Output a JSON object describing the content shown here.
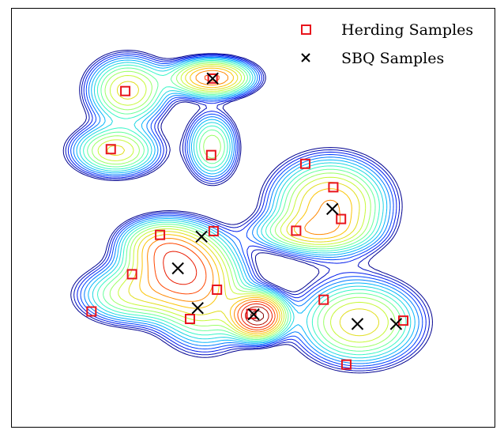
{
  "chart_data": {
    "type": "scatter",
    "title": "",
    "xlabel": "",
    "ylabel": "",
    "xlim": [
      0,
      100
    ],
    "ylim": [
      0,
      100
    ],
    "grid": false,
    "legend_position": "top-right",
    "background": "contour plot of a mixture-of-Gaussians density (unlabeled axes)",
    "series": [
      {
        "name": "Herding Samples",
        "marker": "square",
        "color": "#e8141c",
        "x": [
          23.5,
          41.6,
          20.5,
          41.3,
          60.8,
          66.6,
          68.2,
          58.9,
          30.7,
          41.8,
          24.9,
          42.5,
          16.5,
          36.9,
          49.6,
          64.6,
          81.1,
          69.3
        ],
        "y": [
          80.3,
          83.3,
          66.4,
          65.0,
          62.9,
          57.3,
          49.7,
          46.9,
          45.9,
          46.8,
          36.5,
          32.8,
          27.6,
          25.8,
          27.0,
          30.4,
          25.4,
          14.9
        ]
      },
      {
        "name": "SBQ Samples",
        "marker": "x",
        "color": "#000000",
        "x": [
          41.6,
          66.4,
          39.3,
          34.4,
          38.5,
          50.1,
          71.6,
          79.6
        ],
        "y": [
          83.3,
          52.1,
          45.5,
          37.9,
          28.4,
          26.9,
          24.6,
          24.6
        ]
      }
    ],
    "density_components": [
      {
        "cx": 24.0,
        "cy": 80.5,
        "sx": 5.0,
        "sy": 4.8,
        "w": 1.0
      },
      {
        "cx": 41.5,
        "cy": 83.5,
        "sx": 5.0,
        "sy": 2.6,
        "w": 1.6
      },
      {
        "cx": 41.5,
        "cy": 67.0,
        "sx": 3.2,
        "sy": 5.0,
        "w": 0.75
      },
      {
        "cx": 21.5,
        "cy": 66.0,
        "sx": 5.5,
        "sy": 3.6,
        "w": 0.95
      },
      {
        "cx": 66.0,
        "cy": 53.0,
        "sx": 7.0,
        "sy": 6.5,
        "w": 1.3
      },
      {
        "cx": 61.0,
        "cy": 46.5,
        "sx": 7.0,
        "sy": 2.6,
        "w": 0.65
      },
      {
        "cx": 34.5,
        "cy": 38.5,
        "sx": 6.0,
        "sy": 5.5,
        "w": 1.6
      },
      {
        "cx": 30.0,
        "cy": 44.0,
        "sx": 5.0,
        "sy": 3.5,
        "w": 0.6
      },
      {
        "cx": 40.0,
        "cy": 30.0,
        "sx": 6.0,
        "sy": 7.0,
        "w": 0.85
      },
      {
        "cx": 24.0,
        "cy": 31.5,
        "sx": 6.5,
        "sy": 4.2,
        "w": 0.7
      },
      {
        "cx": 51.0,
        "cy": 26.5,
        "sx": 3.2,
        "sy": 3.0,
        "w": 2.6
      },
      {
        "cx": 72.0,
        "cy": 25.0,
        "sx": 7.5,
        "sy": 6.0,
        "w": 1.05
      }
    ],
    "contour_levels": 18,
    "contour_colormap": [
      "#00008f",
      "#0020ff",
      "#00b0ff",
      "#40ffbf",
      "#bfff40",
      "#ffc000",
      "#ff2000",
      "#800000"
    ]
  }
}
